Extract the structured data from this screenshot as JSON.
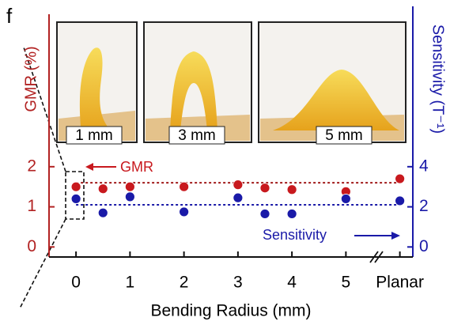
{
  "chart_data": {
    "type": "scatter",
    "panel_label": "f",
    "xlabel": "Bending Radius (mm)",
    "ylabel": "GMR (%)",
    "y2label": "Sensitivity (T⁻¹)",
    "x": [
      0,
      0.5,
      1,
      2,
      3,
      3.5,
      4,
      5,
      6
    ],
    "xlim": [
      -0.5,
      6.24
    ],
    "xticks": [
      0,
      1,
      2,
      3,
      4,
      5,
      {
        "value": 6,
        "label": "Planar"
      }
    ],
    "ylim": [
      -0.25,
      5.8
    ],
    "yticks": [
      0,
      1,
      2
    ],
    "y2lim": [
      -0.5,
      11.6
    ],
    "y2ticks": [
      0,
      2,
      4
    ],
    "series": [
      {
        "name": "GMR",
        "color": "#c8191e",
        "values": [
          1.5,
          1.45,
          1.5,
          1.5,
          1.55,
          1.47,
          1.43,
          1.38,
          1.7
        ]
      },
      {
        "name": "Sensitivity",
        "color": "#1a1aa8",
        "axis": "y2",
        "values": [
          2.4,
          1.7,
          2.5,
          1.75,
          2.45,
          1.65,
          1.65,
          2.4,
          2.3
        ]
      }
    ],
    "reference_lines": [
      {
        "axis": "y",
        "value": 1.6,
        "color": "#a01a1a"
      },
      {
        "axis": "y2",
        "value": 2.1,
        "color": "#1a1aa8"
      }
    ],
    "insets": [
      "1 mm",
      "3 mm",
      "5 mm"
    ]
  }
}
